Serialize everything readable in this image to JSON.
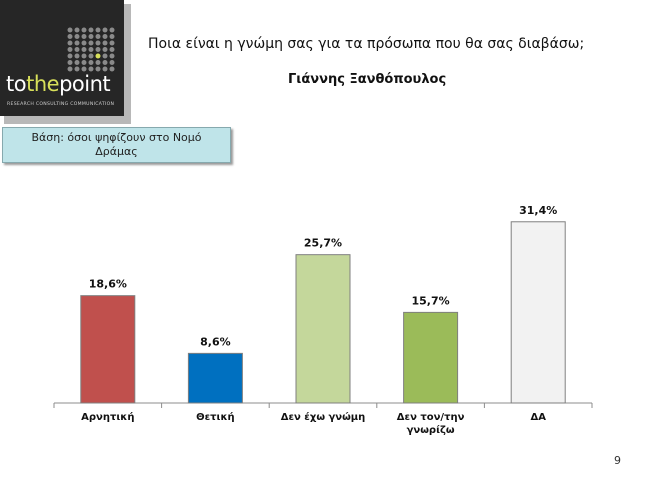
{
  "header": {
    "question": "Ποια είναι η γνώμη σας για τα πρόσωπα που θα σας διαβάσω;",
    "person": "Γιάννης Ξανθόπουλος",
    "base_line1": "Βάση: όσοι ψηφίζουν στο  Νομό",
    "base_line2": "Δράμας"
  },
  "logo": {
    "brand_prefix": "to",
    "brand_accent": "the",
    "brand_suffix": "point",
    "tagline": "RESEARCH  CONSULTING  COMMUNICATION",
    "bg_color": "#262626",
    "accent_color": "#d8e05a"
  },
  "page_number": "9",
  "chart_data": {
    "type": "bar",
    "categories": [
      [
        "Αρνητική"
      ],
      [
        "Θετική"
      ],
      [
        "Δεν έχω γνώμη"
      ],
      [
        "Δεν τον/την",
        "γνωρίζω"
      ],
      [
        "ΔΑ"
      ]
    ],
    "values": [
      18.6,
      8.6,
      25.7,
      15.7,
      31.4
    ],
    "labels": [
      "18,6%",
      "8,6%",
      "25,7%",
      "15,7%",
      "31,4%"
    ],
    "colors": [
      "#c0504d",
      "#0070c0",
      "#c4d79b",
      "#9bbb59",
      "#f2f2f2"
    ],
    "ylim": [
      0,
      35
    ],
    "grid": false
  }
}
